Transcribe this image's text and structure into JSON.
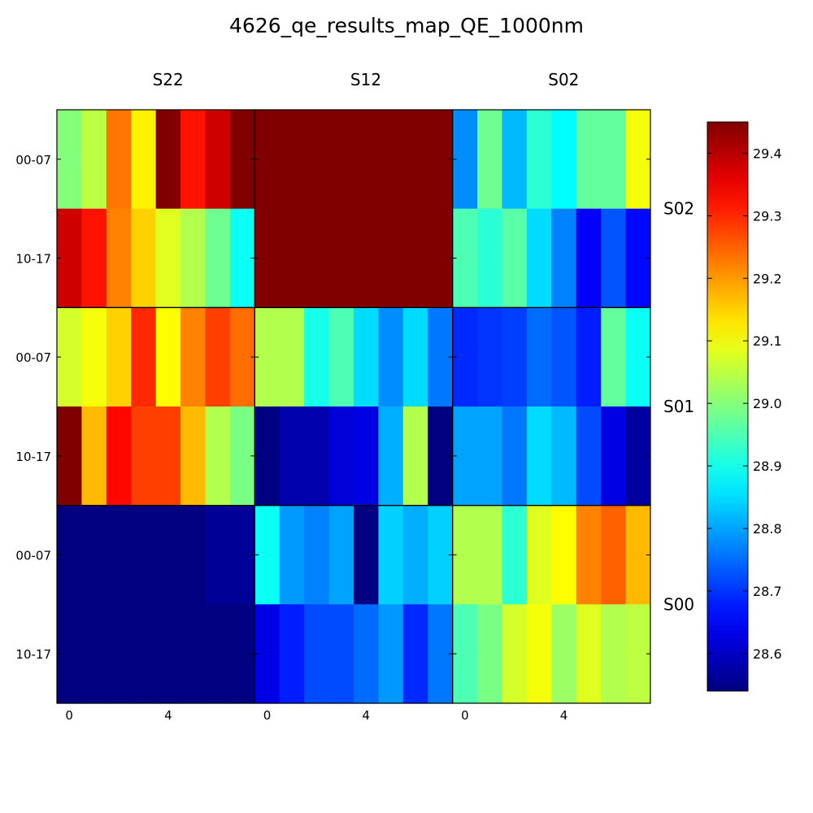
{
  "chart_data": {
    "type": "heatmap",
    "title": "4626_qe_results_map_QE_1000nm",
    "column_panels": [
      "S22",
      "S12",
      "S02"
    ],
    "row_panels": [
      "S02",
      "S01",
      "S00"
    ],
    "row_labels": [
      "00-07",
      "10-17"
    ],
    "x_ticks": [
      "0",
      "4"
    ],
    "x_tick_positions": [
      0,
      4
    ],
    "colormap": "jet",
    "vmin": 28.54,
    "vmax": 29.45,
    "colorbar_ticks": [
      "28.6",
      "28.7",
      "28.8",
      "28.9",
      "29.0",
      "29.1",
      "29.2",
      "29.3",
      "29.4"
    ],
    "colorbar_tick_values": [
      28.6,
      28.7,
      28.8,
      28.9,
      29.0,
      29.1,
      29.2,
      29.3,
      29.4
    ],
    "grid": false,
    "cells": [
      [
        [
          29.0,
          29.05,
          29.23,
          29.12,
          29.45,
          29.32,
          29.38,
          29.45
        ],
        [
          29.45,
          29.45,
          29.45,
          29.45,
          29.45,
          29.45,
          29.45,
          29.45
        ],
        [
          28.78,
          28.98,
          28.82,
          28.92,
          28.88,
          28.97,
          28.97,
          29.1
        ],
        [
          29.38,
          29.32,
          29.22,
          29.15,
          29.08,
          29.04,
          28.98,
          28.89
        ],
        [
          29.45,
          29.45,
          29.45,
          29.45,
          29.45,
          29.45,
          29.45,
          29.45
        ],
        [
          28.95,
          28.92,
          28.96,
          28.85,
          28.77,
          28.65,
          28.73,
          28.66
        ]
      ],
      [
        [
          29.07,
          29.1,
          29.15,
          29.3,
          29.11,
          29.22,
          29.28,
          29.24
        ],
        [
          29.04,
          29.04,
          28.9,
          28.95,
          28.85,
          28.78,
          28.85,
          28.76
        ],
        [
          28.69,
          28.7,
          28.71,
          28.75,
          28.73,
          28.68,
          28.97,
          28.89
        ],
        [
          29.45,
          29.17,
          29.33,
          29.28,
          29.28,
          29.17,
          29.04,
          28.99
        ],
        [
          28.54,
          28.58,
          28.58,
          28.62,
          28.63,
          28.81,
          29.04,
          28.54
        ],
        [
          28.8,
          28.8,
          28.76,
          28.85,
          28.82,
          28.72,
          28.63,
          28.57
        ]
      ],
      [
        [
          28.54,
          28.54,
          28.54,
          28.54,
          28.54,
          28.54,
          28.56,
          28.56
        ],
        [
          28.89,
          28.79,
          28.77,
          28.8,
          28.54,
          28.84,
          28.81,
          28.84
        ],
        [
          29.04,
          29.04,
          28.92,
          29.08,
          29.11,
          29.22,
          29.25,
          29.17
        ],
        [
          28.54,
          28.54,
          28.54,
          28.54,
          28.54,
          28.54,
          28.54,
          28.54
        ],
        [
          28.63,
          28.68,
          28.72,
          28.72,
          28.75,
          28.79,
          28.69,
          28.76
        ],
        [
          28.95,
          28.99,
          29.07,
          29.1,
          29.02,
          29.08,
          29.04,
          29.05
        ]
      ]
    ]
  }
}
